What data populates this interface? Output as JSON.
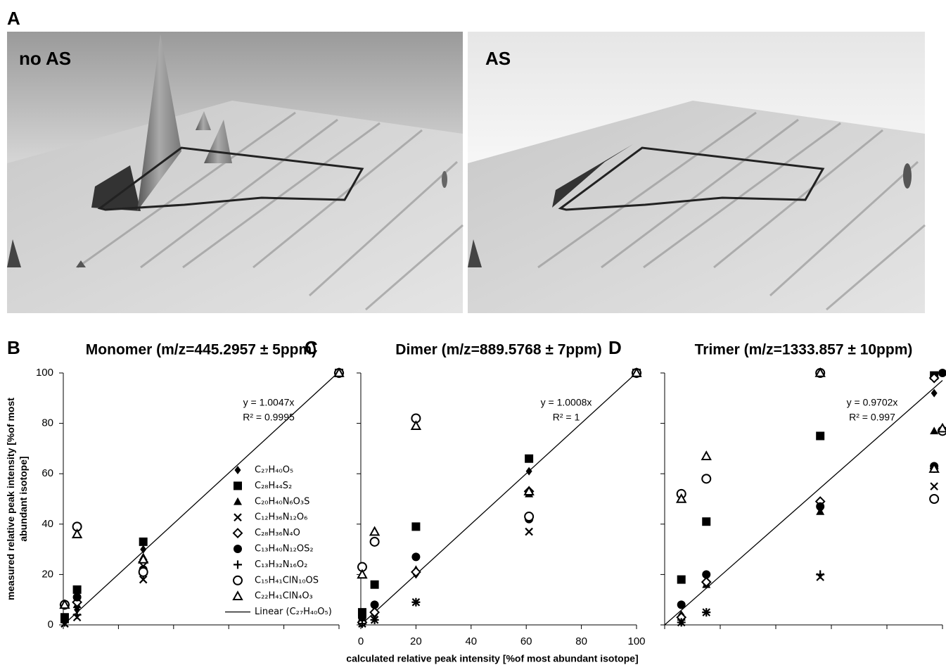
{
  "panel_a": {
    "label": "A",
    "images": [
      "no AS",
      "AS"
    ]
  },
  "chart_data": [
    {
      "type": "scatter",
      "panel": "B",
      "title": "Monomer (m/z=445.2957 ± 5ppm)",
      "y_label": [
        "measured relative peak intensity [%of most",
        "abundant isotope]"
      ],
      "xlim": [
        0,
        100
      ],
      "ylim": [
        0,
        100
      ],
      "yticks": [
        0,
        20,
        40,
        60,
        80,
        100
      ],
      "fit": {
        "name": "Linear (C₂₇H₄₀O₅)",
        "equation": "y = 1.0047x",
        "r2": "R² = 0.9995",
        "slope": 1.0047
      },
      "series": [
        {
          "name": "C₂₇H₄₀O₅",
          "marker": "diamond",
          "x": [
            0.5,
            5,
            29,
            100
          ],
          "values": [
            1,
            6,
            30,
            100
          ]
        },
        {
          "name": "C₂₈H₄₄S₂",
          "marker": "square",
          "x": [
            0.5,
            5,
            29,
            100
          ],
          "values": [
            3,
            14,
            33,
            100
          ]
        },
        {
          "name": "C₂₀H₄₀N₆O₃S",
          "marker": "triangle",
          "x": [
            0.5,
            5,
            29,
            100
          ],
          "values": [
            2,
            8,
            27,
            100
          ]
        },
        {
          "name": "C₁₂H₃₆N₁₂O₆",
          "marker": "x",
          "x": [
            0.5,
            5,
            29,
            100
          ],
          "values": [
            0.5,
            3,
            18,
            100
          ]
        },
        {
          "name": "C₂₈H₃₆N₄O",
          "marker": "diamond-open",
          "x": [
            0.5,
            5,
            29,
            100
          ],
          "values": [
            8,
            9,
            25,
            100
          ]
        },
        {
          "name": "C₁₃H₄₀N₁₂OS₂",
          "marker": "circle",
          "x": [
            0.5,
            5,
            29,
            100
          ],
          "values": [
            2,
            11,
            22,
            100
          ]
        },
        {
          "name": "C₁₃H₃₂N₁₆O₂",
          "marker": "plus",
          "x": [
            0.5,
            5,
            29,
            100
          ],
          "values": [
            1,
            4,
            20,
            100
          ]
        },
        {
          "name": "C₁₅H₄₁ClN₁₀OS",
          "marker": "circle-open",
          "x": [
            0.5,
            5,
            29,
            100
          ],
          "values": [
            8,
            39,
            21,
            100
          ]
        },
        {
          "name": "C₂₂H₄₁ClN₄O₃",
          "marker": "triangle-open",
          "x": [
            0.5,
            5,
            29,
            100
          ],
          "values": [
            8,
            36,
            26,
            100
          ]
        }
      ]
    },
    {
      "type": "scatter",
      "panel": "C",
      "title": "Dimer (m/z=889.5768 ± 7ppm)",
      "x_label": "calculated relative peak intensity [%of most abundant isotope]",
      "xlim": [
        0,
        100
      ],
      "ylim": [
        0,
        100
      ],
      "xticks": [
        0,
        20,
        40,
        60,
        80,
        100
      ],
      "fit": {
        "equation": "y = 1.0008x",
        "r2": "R² = 1",
        "slope": 1.0008
      },
      "series": [
        {
          "marker": "diamond",
          "x": [
            0.5,
            5,
            20,
            61,
            100
          ],
          "values": [
            0.5,
            4,
            20,
            61,
            100
          ]
        },
        {
          "marker": "square",
          "x": [
            0.5,
            5,
            20,
            61,
            100
          ],
          "values": [
            5,
            16,
            39,
            66,
            100
          ]
        },
        {
          "marker": "triangle",
          "x": [
            0.5,
            5,
            20,
            61,
            100
          ],
          "values": [
            2,
            6,
            22,
            52,
            100
          ]
        },
        {
          "marker": "x",
          "x": [
            0.5,
            5,
            20,
            61,
            100
          ],
          "values": [
            0.5,
            2,
            9,
            37,
            100
          ]
        },
        {
          "marker": "diamond-open",
          "x": [
            0.5,
            5,
            20,
            61,
            100
          ],
          "values": [
            1,
            5,
            21,
            53,
            100
          ]
        },
        {
          "marker": "circle",
          "x": [
            0.5,
            5,
            20,
            61,
            100
          ],
          "values": [
            3,
            8,
            27,
            42,
            100
          ]
        },
        {
          "marker": "plus",
          "x": [
            0.5,
            5,
            20,
            61,
            100
          ],
          "values": [
            0.5,
            2,
            9,
            43,
            100
          ]
        },
        {
          "marker": "circle-open",
          "x": [
            0.5,
            5,
            20,
            61,
            100
          ],
          "values": [
            23,
            33,
            82,
            43,
            100
          ]
        },
        {
          "marker": "triangle-open",
          "x": [
            0.5,
            5,
            20,
            61,
            100
          ],
          "values": [
            20,
            37,
            79,
            53,
            100
          ]
        }
      ]
    },
    {
      "type": "scatter",
      "panel": "D",
      "title": "Trimer (m/z=1333.857 ± 10ppm)",
      "xlim": [
        0,
        100
      ],
      "ylim": [
        0,
        100
      ],
      "fit": {
        "equation": "y = 0.9702x",
        "r2": "R² = 0.997",
        "slope": 0.9702
      },
      "series": [
        {
          "marker": "diamond",
          "x": [
            6,
            15,
            56,
            97,
            100
          ],
          "values": [
            4,
            16,
            46,
            92,
            100
          ]
        },
        {
          "marker": "square",
          "x": [
            6,
            15,
            56,
            97
          ],
          "values": [
            18,
            41,
            75,
            99
          ]
        },
        {
          "marker": "triangle",
          "x": [
            6,
            15,
            56,
            97
          ],
          "values": [
            3,
            16,
            45,
            77
          ]
        },
        {
          "marker": "x",
          "x": [
            6,
            15,
            56,
            97
          ],
          "values": [
            1,
            5,
            19,
            55
          ]
        },
        {
          "marker": "diamond-open",
          "x": [
            6,
            15,
            56,
            97
          ],
          "values": [
            3,
            17,
            49,
            98
          ]
        },
        {
          "marker": "circle",
          "x": [
            6,
            15,
            56,
            97,
            100
          ],
          "values": [
            8,
            20,
            47,
            63,
            100
          ]
        },
        {
          "marker": "plus",
          "x": [
            6,
            15,
            56,
            97
          ],
          "values": [
            1,
            5,
            20,
            62
          ]
        },
        {
          "marker": "circle-open",
          "x": [
            6,
            15,
            56,
            97,
            100
          ],
          "values": [
            52,
            58,
            100,
            50,
            77
          ]
        },
        {
          "marker": "triangle-open",
          "x": [
            6,
            15,
            56,
            97,
            100
          ],
          "values": [
            50,
            67,
            100,
            62,
            78
          ]
        }
      ]
    }
  ]
}
